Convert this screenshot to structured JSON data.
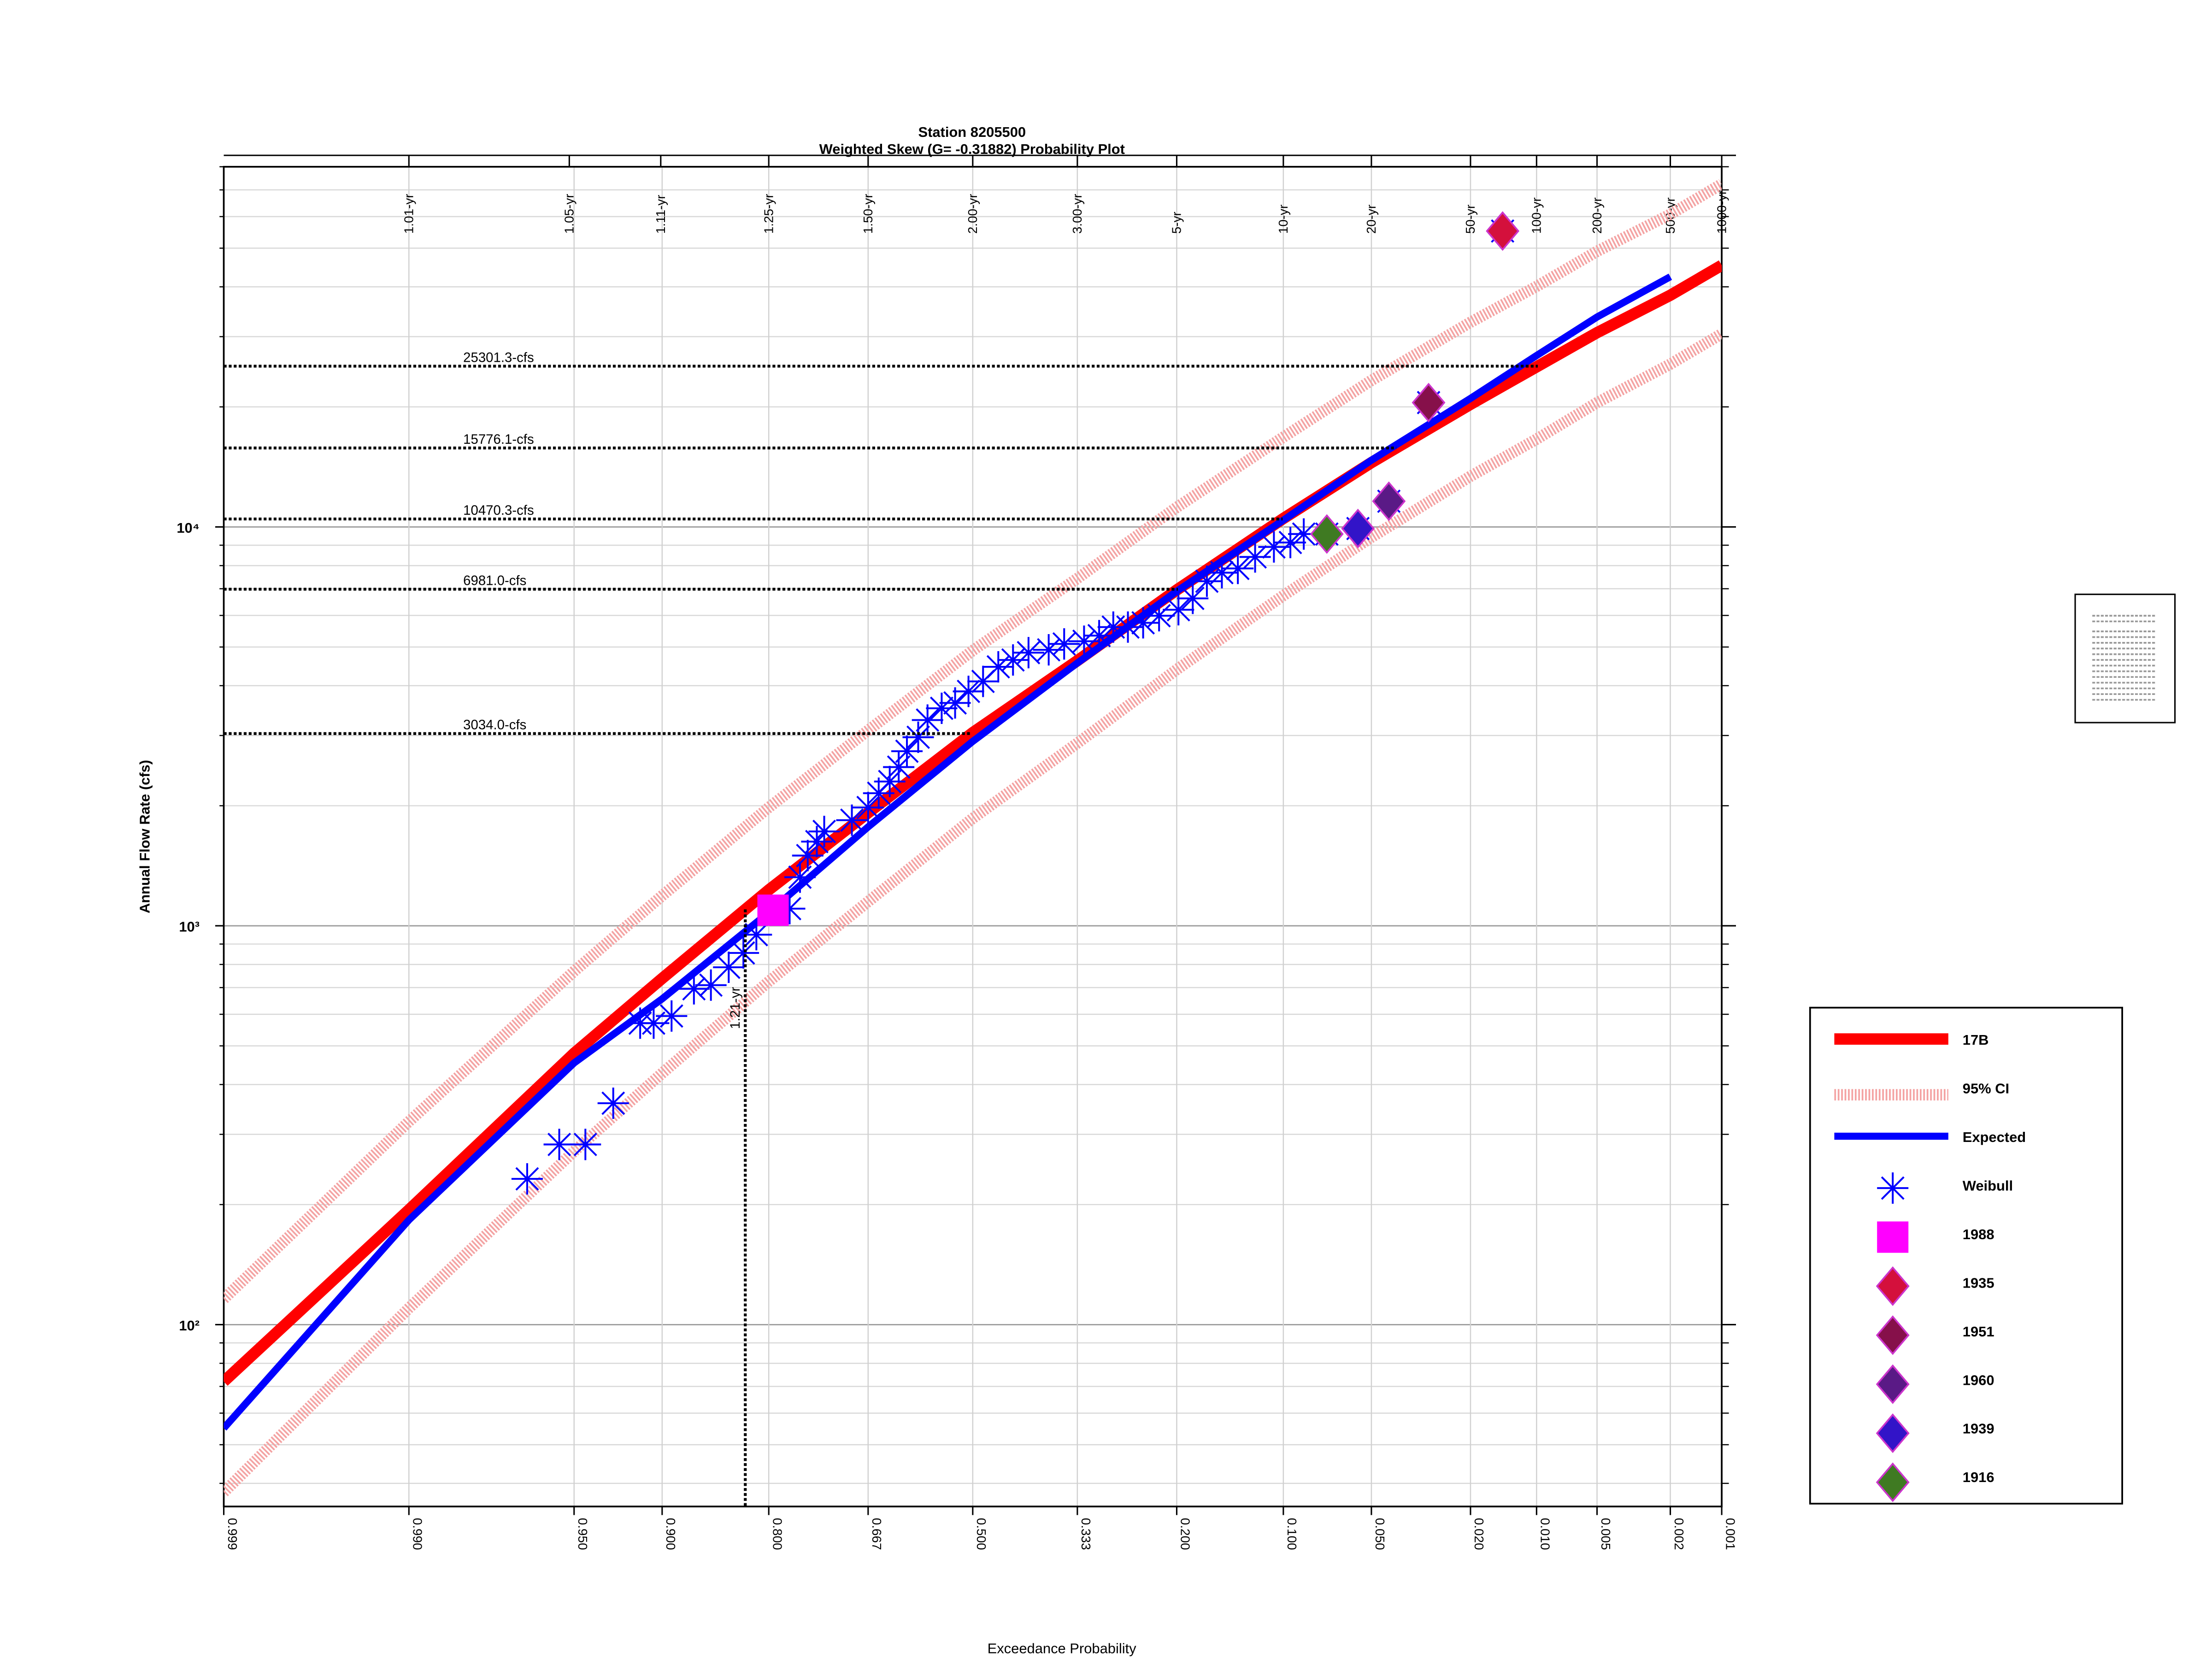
{
  "chart_data": {
    "type": "probability",
    "title": "Station 8205500",
    "subtitle": "Weighted Skew (G= -0.31882) Probability Plot",
    "x_label": "Exceedance Probability",
    "y_label": "Annual Flow Rate (cfs)",
    "xscale": "normal-probability",
    "yscale": "log",
    "grid": true,
    "legend": "lower right",
    "xlim": [
      0.999,
      0.001
    ],
    "ylim": [
      35,
      80000
    ],
    "xticks": [
      0.999,
      {
        "value": 0.99,
        "label": "0.990"
      },
      {
        "value": 0.95,
        "label": "0.950"
      },
      {
        "value": 0.9,
        "label": "0.900"
      },
      {
        "value": 0.8,
        "label": "0.800"
      },
      0.667,
      {
        "value": 0.5,
        "label": "0.500"
      },
      0.333,
      {
        "value": 0.2,
        "label": "0.200"
      },
      {
        "value": 0.1,
        "label": "0.100"
      },
      {
        "value": 0.05,
        "label": "0.050"
      },
      {
        "value": 0.02,
        "label": "0.020"
      },
      {
        "value": 0.01,
        "label": "0.010"
      },
      0.005,
      0.002,
      0.001
    ],
    "x2ticks": [
      {
        "value": 0.99,
        "label": "1.01-yr"
      },
      {
        "value": 0.952,
        "label": "1.05-yr"
      },
      {
        "value": 0.901,
        "label": "1.11-yr"
      },
      {
        "value": 0.8,
        "label": "1.25-yr"
      },
      {
        "value": 0.667,
        "label": "1.50-yr"
      },
      {
        "value": 0.5,
        "label": "2.00-yr"
      },
      {
        "value": 0.333,
        "label": "3.00-yr"
      },
      {
        "value": 0.2,
        "label": "5-yr"
      },
      {
        "value": 0.1,
        "label": "10-yr"
      },
      {
        "value": 0.05,
        "label": "20-yr"
      },
      {
        "value": 0.02,
        "label": "50-yr"
      },
      {
        "value": 0.01,
        "label": "100-yr"
      },
      {
        "value": 0.005,
        "label": "200-yr"
      },
      {
        "value": 0.002,
        "label": "500-yr"
      },
      {
        "value": 0.001,
        "label": "1000-yr"
      }
    ],
    "yticks": [
      {
        "value": 100,
        "label": "10²"
      },
      {
        "value": 1000,
        "label": "10³"
      },
      {
        "value": 10000,
        "label": "10⁴"
      }
    ],
    "yminorticks": [
      40,
      50,
      60,
      70,
      80,
      90,
      200,
      300,
      400,
      500,
      600,
      700,
      800,
      900,
      2000,
      3000,
      4000,
      5000,
      6000,
      7000,
      8000,
      9000,
      20000,
      30000,
      40000,
      50000,
      60000,
      70000,
      80000
    ],
    "hlines": [
      {
        "value": 25301.3,
        "label": "25301.3-cfs"
      },
      {
        "value": 15776.1,
        "label": "15776.1-cfs"
      },
      {
        "value": 10470.3,
        "label": "10470.3-cfs"
      },
      {
        "value": 6981.0,
        "label": "6981.0-cfs"
      },
      {
        "value": 3034.0,
        "label": "3034.0-cfs"
      }
    ],
    "vline": {
      "value": 0.826,
      "label": "1.21-yr"
    },
    "series": [
      {
        "name": "17B",
        "kind": "line",
        "color": "#ff0000",
        "x": [
          0.999,
          0.99,
          0.95,
          0.9,
          0.8,
          0.667,
          0.5,
          0.333,
          0.2,
          0.1,
          0.05,
          0.02,
          0.01,
          0.005,
          0.002,
          0.001
        ],
        "values": [
          72,
          194,
          479,
          738,
          1230,
          1920,
          3050,
          4620,
          6950,
          10500,
          14500,
          20300,
          25200,
          30700,
          38100,
          45300
        ]
      },
      {
        "name": "95% CI",
        "kind": "ci",
        "color": "#f4a3a3",
        "x": [
          0.999,
          0.99,
          0.95,
          0.9,
          0.8,
          0.667,
          0.5,
          0.333,
          0.2,
          0.1,
          0.05,
          0.02,
          0.01,
          0.005,
          0.002,
          0.001
        ],
        "upper": [
          116,
          323,
          769,
          1190,
          1980,
          3090,
          4900,
          7430,
          11200,
          16800,
          23300,
          32600,
          40100,
          49100,
          60800,
          72400
        ],
        "lower": [
          38,
          110,
          272,
          427,
          725,
          1150,
          1860,
          2870,
          4390,
          6730,
          9420,
          13400,
          16600,
          20500,
          25600,
          30500
        ]
      },
      {
        "name": "Expected",
        "kind": "line",
        "color": "#0000ff",
        "x": [
          0.999,
          0.99,
          0.95,
          0.9,
          0.8,
          0.667,
          0.5,
          0.333,
          0.2,
          0.1,
          0.05,
          0.02,
          0.01,
          0.005,
          0.002,
          0.001
        ],
        "values": [
          55,
          183,
          453,
          656,
          1080,
          1770,
          2900,
          4560,
          6900,
          10400,
          14700,
          21000,
          26900,
          33600,
          42400,
          null
        ]
      },
      {
        "name": "Weibull",
        "kind": "asterisk",
        "color": "#0000ff",
        "x": [
          0.967,
          0.956,
          0.945,
          0.931,
          0.915,
          0.906,
          0.893,
          0.875,
          0.86,
          0.843,
          0.828,
          0.814,
          0.775,
          0.762,
          0.752,
          0.74,
          0.73,
          0.691,
          0.667,
          0.651,
          0.634,
          0.62,
          0.607,
          0.589,
          0.574,
          0.551,
          0.529,
          0.507,
          0.483,
          0.458,
          0.434,
          0.409,
          0.377,
          0.353,
          0.323,
          0.301,
          0.281,
          0.261,
          0.241,
          0.221,
          0.198,
          0.182,
          0.167,
          0.152,
          0.137,
          0.122,
          0.107,
          0.095,
          0.086,
          0.072,
          0.056,
          0.043,
          0.03,
          0.0144
        ],
        "values": [
          232,
          283,
          283,
          359,
          570,
          570,
          594,
          695,
          710,
          787,
          855,
          950,
          1104,
          1324,
          1500,
          1626,
          1724,
          1840,
          1980,
          2150,
          2300,
          2500,
          2740,
          2970,
          3280,
          3510,
          3620,
          3870,
          4100,
          4460,
          4640,
          4840,
          4920,
          5090,
          5170,
          5340,
          5610,
          5610,
          5750,
          5990,
          6200,
          6620,
          7310,
          7680,
          7870,
          8410,
          8910,
          9140,
          9600,
          9600,
          9910,
          11600,
          20500,
          55200
        ]
      },
      {
        "name": "1988",
        "kind": "square",
        "color": "#ff00ff",
        "x": [
          0.795
        ],
        "values": [
          1094
        ]
      },
      {
        "name": "1935",
        "kind": "diamond",
        "color": "#d4103c",
        "x": [
          0.0144
        ],
        "values": [
          55200
        ]
      },
      {
        "name": "1951",
        "kind": "diamond",
        "color": "#86104a",
        "x": [
          0.03
        ],
        "values": [
          20500
        ]
      },
      {
        "name": "1960",
        "kind": "diamond",
        "color": "#5a1a86",
        "x": [
          0.043
        ],
        "values": [
          11600
        ]
      },
      {
        "name": "1939",
        "kind": "diamond",
        "color": "#3214c8",
        "x": [
          0.056
        ],
        "values": [
          9910
        ]
      },
      {
        "name": "1916",
        "kind": "diamond",
        "color": "#3f7a22",
        "x": [
          0.072
        ],
        "values": [
          9600
        ]
      }
    ]
  }
}
